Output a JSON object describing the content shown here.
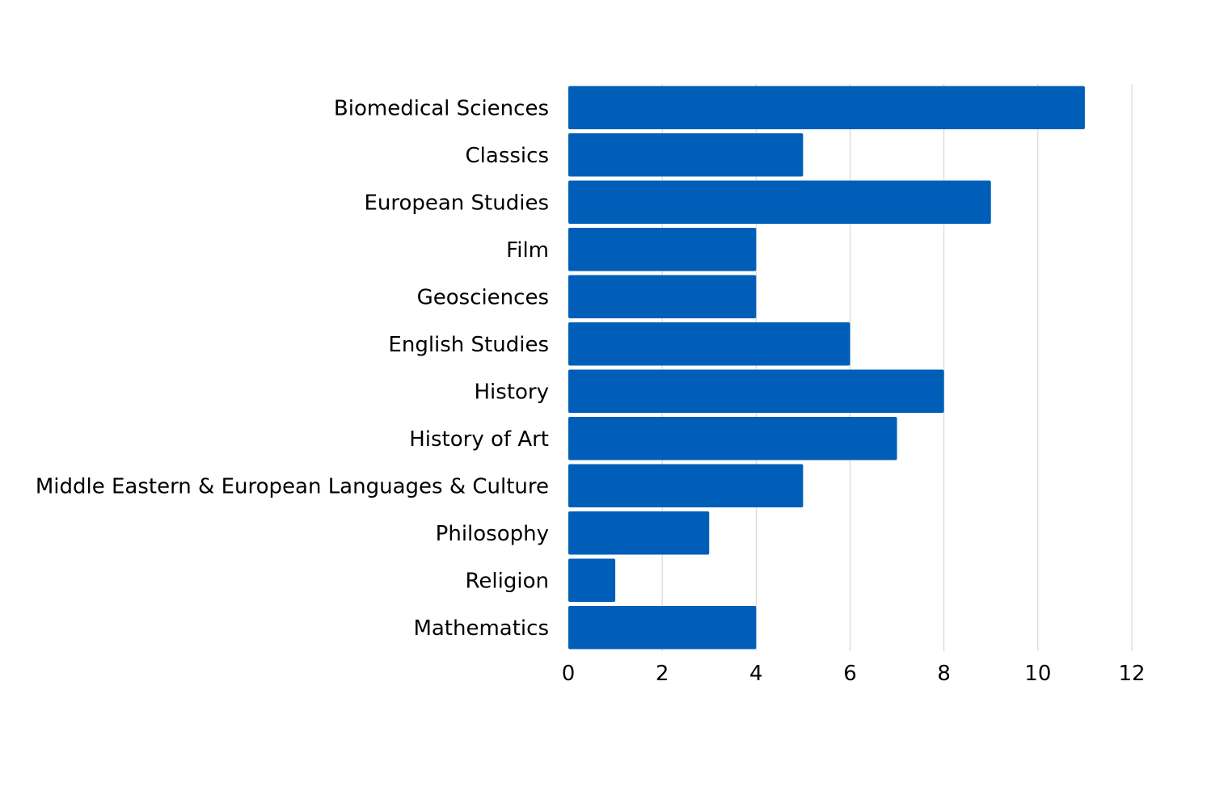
{
  "chart_data": {
    "type": "bar",
    "orientation": "horizontal",
    "categories": [
      "Biomedical Sciences",
      "Classics",
      "European Studies",
      "Film",
      "Geosciences",
      "English Studies",
      "History",
      "History of Art",
      "Middle Eastern & European Languages & Culture",
      "Philosophy",
      "Religion",
      "Mathematics"
    ],
    "values": [
      11,
      5,
      9,
      4,
      4,
      6,
      8,
      7,
      5,
      3,
      1,
      4
    ],
    "title": "",
    "xlabel": "",
    "ylabel": "",
    "xlim": [
      0,
      12
    ],
    "xticks": [
      "0",
      "2",
      "4",
      "6",
      "8",
      "10",
      "12"
    ],
    "grid": "vertical",
    "legend": "none",
    "bar_color": "#005EB8",
    "grid_color": "#D0D0D0"
  }
}
